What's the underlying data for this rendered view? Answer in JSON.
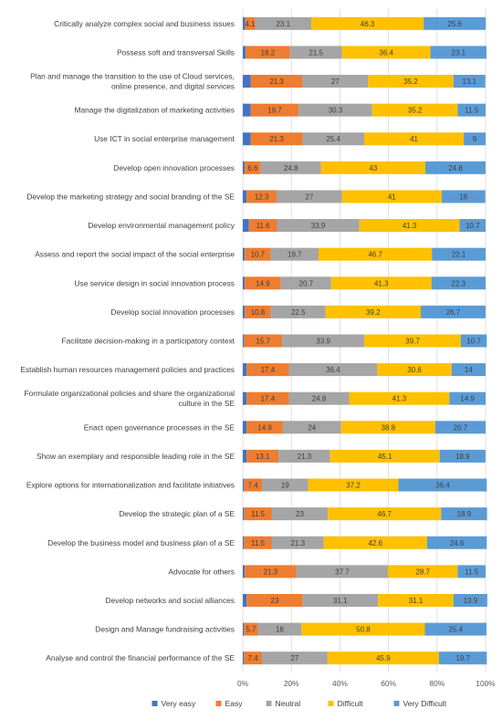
{
  "chart_data": {
    "type": "bar",
    "orientation": "horizontal",
    "stacked": "percent",
    "xlim": [
      0,
      100
    ],
    "xticks": [
      "0%",
      "20%",
      "40%",
      "60%",
      "80%",
      "100%"
    ],
    "grid": true,
    "legend_position": "bottom",
    "categories": [
      [
        "Critically analyze complex social and business issues"
      ],
      [
        "Possess soft and transversal Skills"
      ],
      [
        "Plan and manage the transition to the use of Cloud services,",
        "online presence, and digital services"
      ],
      [
        "Manage the digitalization of marketing activities"
      ],
      [
        "Use ICT in social enterprise management"
      ],
      [
        "Develop open innovation processes"
      ],
      [
        "Develop the marketing strategy and social branding of the SE"
      ],
      [
        "Develop environmental management policy"
      ],
      [
        "Assess and report the social impact of the social enterprise"
      ],
      [
        "Use service design in social innovation process"
      ],
      [
        "Develop social innovation processes"
      ],
      [
        "Facilitate decision-making in a participatory context"
      ],
      [
        "Establish human resources management policies and practices"
      ],
      [
        "Formulate organizational policies and share the organizational",
        "culture in the SE"
      ],
      [
        "Enact open governance processes in the SE"
      ],
      [
        "Show an exemplary and responsible leading role in the SE"
      ],
      [
        "Explore options for internationalization and facilitate initiatives"
      ],
      [
        "Develop the strategic plan of a SE"
      ],
      [
        "Develop the business model and business plan of a SE"
      ],
      [
        "Advocate for others"
      ],
      [
        "Develop networks and social alliances"
      ],
      [
        "Design and Manage fundraising activities"
      ],
      [
        "Analyse and control the financial performance of the SE"
      ]
    ],
    "series": [
      {
        "name": "Very easy",
        "color": "#4472c4",
        "values": [
          1,
          1.2,
          3.3,
          3.3,
          3.3,
          0.8,
          1.6,
          2.5,
          0.8,
          0.8,
          0.8,
          0.5,
          1.6,
          1.6,
          1.6,
          1.6,
          0.5,
          0.5,
          0.5,
          0.8,
          1.6,
          0.5,
          0.5
        ],
        "labels": [
          "",
          "",
          "",
          "",
          "",
          "",
          "",
          "",
          "",
          "",
          "",
          "",
          "",
          "",
          "",
          "",
          "",
          "",
          "",
          "",
          "",
          "",
          ""
        ]
      },
      {
        "name": "Easy",
        "color": "#ed7d31",
        "values": [
          4.1,
          18.2,
          21.3,
          19.7,
          21.3,
          6.6,
          12.3,
          11.6,
          10.7,
          14.9,
          10.8,
          15.7,
          17.4,
          17.4,
          14.9,
          13.1,
          7.4,
          11.5,
          11.5,
          21.3,
          23,
          5.7,
          7.4
        ],
        "labels": [
          "4.1",
          "18.2",
          "21.3",
          "19.7",
          "21.3",
          "6.6",
          "12.3",
          "11.6",
          "10.7",
          "14.9",
          "10.8",
          "15.7",
          "17.4",
          "17.4",
          "14.9",
          "13.1",
          "7.4",
          "11.5",
          "11.5",
          "21.3",
          "23",
          "5.7",
          "7.4"
        ]
      },
      {
        "name": "Neutral",
        "color": "#a5a5a5",
        "values": [
          23.1,
          21.5,
          27,
          30.3,
          25.4,
          24.8,
          27,
          33.9,
          19.7,
          20.7,
          22.5,
          33.9,
          36.4,
          24.8,
          24,
          21.3,
          19,
          23,
          21.3,
          37.7,
          31.1,
          18,
          27
        ],
        "labels": [
          "23.1",
          "21.5",
          "27",
          "30.3",
          "25.4",
          "24.8",
          "27",
          "33.9",
          "19.7",
          "20.7",
          "22.5",
          "33.9",
          "36.4",
          "24.8",
          "24",
          "21.3",
          "19",
          "23",
          "21.3",
          "37.7",
          "31.1",
          "18",
          "27"
        ]
      },
      {
        "name": "Difficult",
        "color": "#ffc000",
        "values": [
          46.3,
          36.4,
          35.2,
          35.2,
          41,
          43,
          41,
          41.3,
          46.7,
          41.3,
          39.2,
          39.7,
          30.6,
          41.3,
          38.8,
          45.1,
          37.2,
          46.7,
          42.6,
          28.7,
          31.1,
          50.8,
          45.9
        ],
        "labels": [
          "46.3",
          "36.4",
          "35.2",
          "35.2",
          "41",
          "43",
          "41",
          "41.3",
          "46.7",
          "41.3",
          "39.2",
          "39.7",
          "30.6",
          "41.3",
          "38.8",
          "45.1",
          "37.2",
          "46.7",
          "42.6",
          "28.7",
          "31.1",
          "50.8",
          "45.9"
        ]
      },
      {
        "name": "Very Difficult",
        "color": "#5b9bd5",
        "values": [
          25.6,
          23.1,
          13.1,
          11.5,
          9,
          24.8,
          18,
          10.7,
          22.1,
          22.3,
          26.7,
          10.7,
          14,
          14.9,
          20.7,
          18.9,
          36.4,
          18.9,
          24.6,
          11.5,
          13.9,
          25.4,
          19.7
        ],
        "labels": [
          "25.6",
          "23.1",
          "13.1",
          "11.5",
          "9",
          "24.8",
          "18",
          "10.7",
          "22.1",
          "22.3",
          "26.7",
          "10.7",
          "14",
          "14.9",
          "20.7",
          "18.9",
          "36.4",
          "18.9",
          "24.6",
          "11.5",
          "13.9",
          "25.4",
          "19.7"
        ]
      }
    ]
  }
}
